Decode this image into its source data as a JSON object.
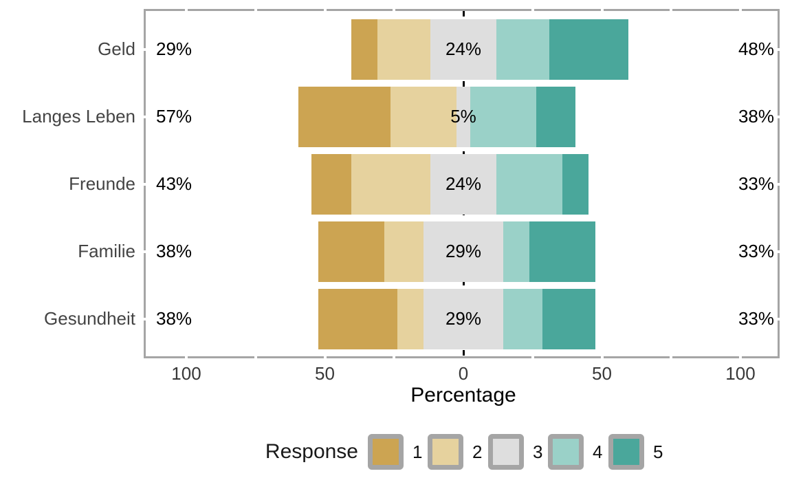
{
  "chart_data": {
    "type": "bar",
    "variant": "diverging-stacked-likert",
    "xlabel": "Percentage",
    "x_axis": {
      "tick_labels": [
        "100",
        "50",
        "0",
        "50",
        "100"
      ],
      "tick_values": [
        -100,
        -50,
        0,
        50,
        100
      ],
      "minor_tick_values": [
        -75,
        -25,
        25,
        75
      ],
      "range": [
        -114.5,
        114.5
      ],
      "baseline": {
        "value": 0,
        "style": "dashed",
        "color": "#000000"
      }
    },
    "categories": [
      "Geld",
      "Langes Leben",
      "Freunde",
      "Familie",
      "Gesundheit"
    ],
    "rows": [
      {
        "label": "Geld",
        "values": [
          9.52,
          19.05,
          23.81,
          19.05,
          28.57
        ],
        "left": "29%",
        "center": "24%",
        "right": "48%"
      },
      {
        "label": "Langes Leben",
        "values": [
          33.33,
          23.81,
          4.76,
          23.81,
          14.29
        ],
        "left": "57%",
        "center": "5%",
        "right": "38%"
      },
      {
        "label": "Freunde",
        "values": [
          14.29,
          28.57,
          23.81,
          23.81,
          9.52
        ],
        "left": "43%",
        "center": "24%",
        "right": "33%"
      },
      {
        "label": "Familie",
        "values": [
          23.81,
          14.29,
          28.57,
          9.52,
          23.81
        ],
        "left": "38%",
        "center": "29%",
        "right": "33%"
      },
      {
        "label": "Gesundheit",
        "values": [
          28.57,
          9.52,
          28.57,
          14.29,
          19.05
        ],
        "left": "38%",
        "center": "29%",
        "right": "33%"
      }
    ],
    "series": [
      {
        "name": "1",
        "values": [
          9.52,
          33.33,
          14.29,
          23.81,
          28.57
        ]
      },
      {
        "name": "2",
        "values": [
          19.05,
          23.81,
          28.57,
          14.29,
          9.52
        ]
      },
      {
        "name": "3",
        "values": [
          23.81,
          4.76,
          23.81,
          28.57,
          28.57
        ]
      },
      {
        "name": "4",
        "values": [
          19.05,
          23.81,
          23.81,
          9.52,
          14.29
        ]
      },
      {
        "name": "5",
        "values": [
          28.57,
          14.29,
          9.52,
          23.81,
          19.05
        ]
      }
    ],
    "legend": {
      "title": "Response",
      "position": "bottom",
      "entries": [
        {
          "label": "1",
          "color": "#CCA452"
        },
        {
          "label": "2",
          "color": "#E6D29E"
        },
        {
          "label": "3",
          "color": "#DEDEDE"
        },
        {
          "label": "4",
          "color": "#9AD1C8"
        },
        {
          "label": "5",
          "color": "#4AA79B"
        }
      ]
    }
  },
  "colors": {
    "panel_border": "#A5A5A5",
    "legend_key_frame": "#A5A5A5",
    "baseline": "#000000",
    "category_label": "#444444",
    "tick_label": "#383838",
    "percent_label": "#000000",
    "background": "#ffffff"
  }
}
